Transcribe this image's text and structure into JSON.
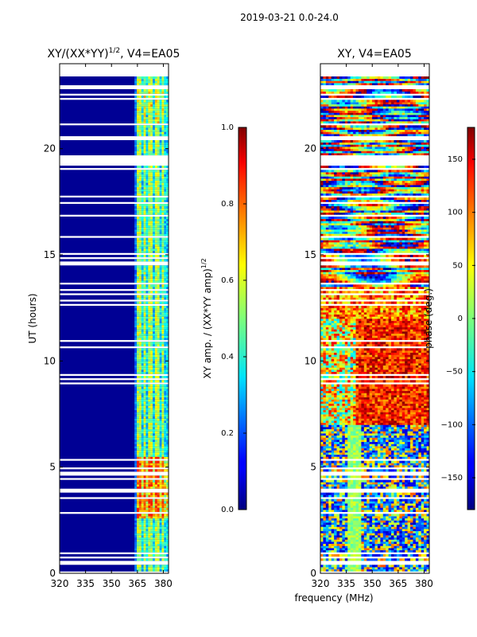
{
  "figure": {
    "suptitle": "2019-03-21 0.0-24.0",
    "shared_xlabel": "frequency (MHz)"
  },
  "colormap": "jet",
  "chart_data": [
    {
      "type": "heatmap",
      "title": "XY/(XX*YY)^{1/2}, V4=EA05",
      "title_main": "XY/(XX*YY)",
      "title_sup": "1/2",
      "title_rest": ", V4=EA05",
      "xlabel": "",
      "ylabel": "UT (hours)",
      "xlim": [
        320,
        383
      ],
      "ylim": [
        0,
        24
      ],
      "xticks": [
        320,
        335,
        350,
        365,
        380
      ],
      "yticks": [
        0,
        5,
        10,
        15,
        20
      ],
      "colorbar": {
        "label": "XY amp. / (XX*YY amp)^{1/2}",
        "label_main": "XY amp. / (XX*YY amp)",
        "label_sup": "1/2",
        "range": [
          0.0,
          1.0
        ],
        "ticks": [
          "0.0",
          "0.2",
          "0.4",
          "0.6",
          "0.8",
          "1.0"
        ],
        "tick_values": [
          0.0,
          0.2,
          0.4,
          0.6,
          0.8,
          1.0
        ]
      },
      "data_summary": {
        "background_value": 0.0,
        "active_band_mhz": [
          364,
          381
        ],
        "peak_value_near": 0.8,
        "peak_hours": [
          2.5,
          5.5
        ]
      }
    },
    {
      "type": "heatmap",
      "title": "XY, V4=EA05",
      "xlabel": "frequency (MHz)",
      "ylabel": "",
      "xlim": [
        320,
        383
      ],
      "ylim": [
        0,
        24
      ],
      "xticks": [
        320,
        335,
        350,
        365,
        380
      ],
      "yticks": [
        0,
        5,
        10,
        15,
        20
      ],
      "colorbar": {
        "label": "phase (deg.)",
        "range": [
          -180,
          180
        ],
        "ticks": [
          "150",
          "100",
          "50",
          "0",
          "−50",
          "−100",
          "−150"
        ],
        "tick_values": [
          150,
          100,
          50,
          0,
          -50,
          -100,
          -150
        ]
      }
    }
  ]
}
